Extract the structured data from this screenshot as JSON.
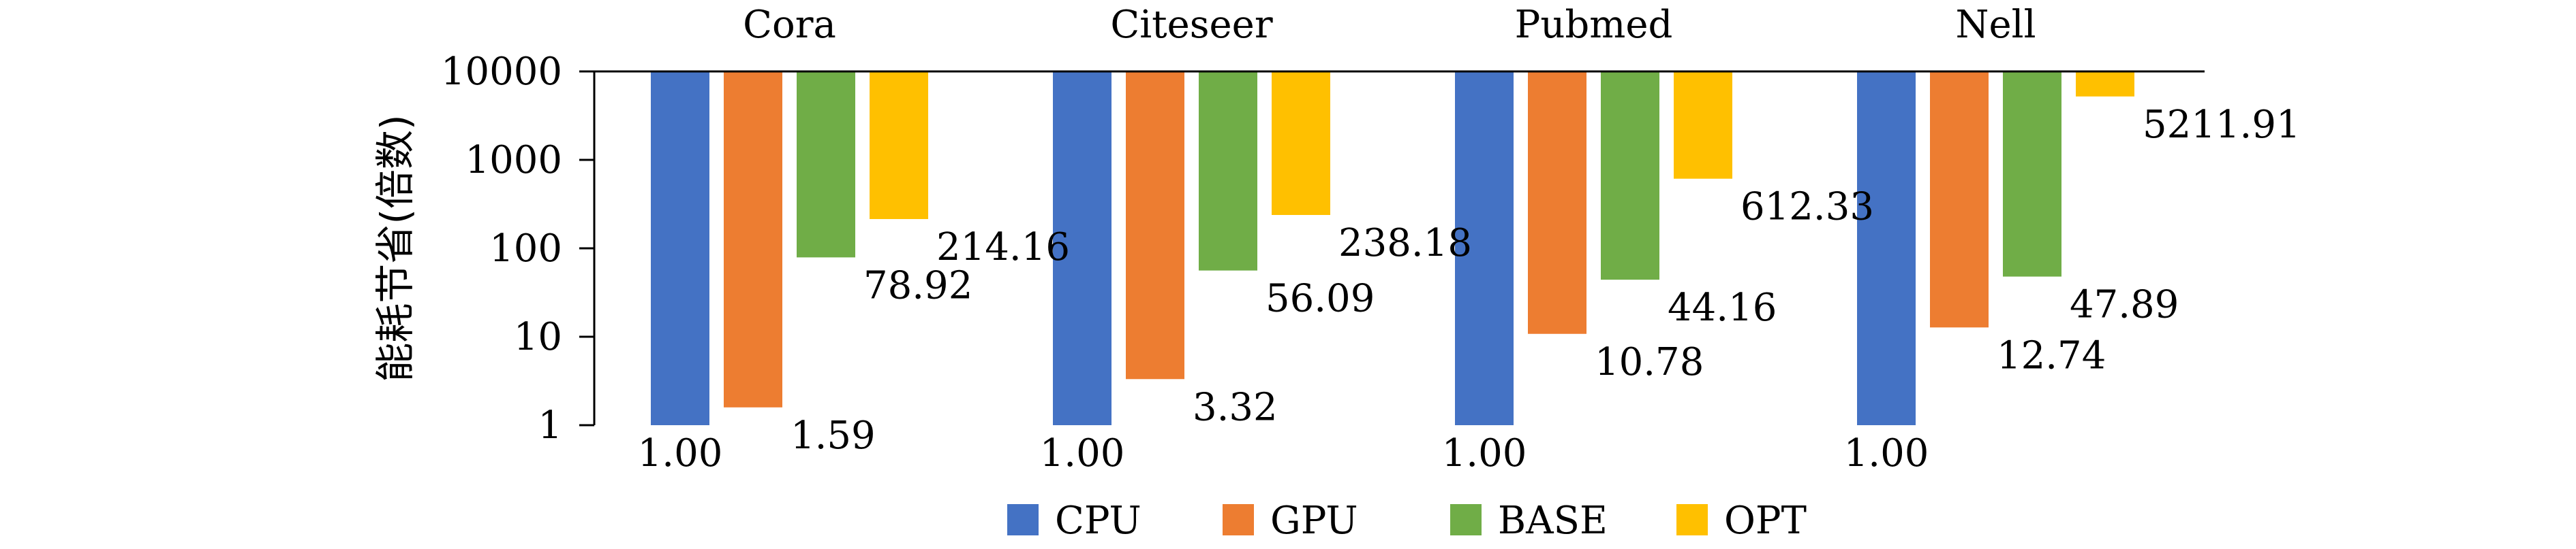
{
  "chart_data": {
    "type": "bar",
    "scale": "log",
    "ylim": [
      1,
      10000
    ],
    "ylabel": "能耗节省(倍数)",
    "xlabel": "",
    "title": "",
    "axis_position": "top",
    "grid": false,
    "legend_position": "bottom-center",
    "yticks": [
      "1",
      "10",
      "100",
      "1000",
      "10000"
    ],
    "categories": [
      "Cora",
      "Citeseer",
      "Pubmed",
      "Nell"
    ],
    "series": [
      {
        "name": "CPU",
        "color": "#4472C4",
        "values": [
          1.0,
          1.0,
          1.0,
          1.0
        ],
        "labels": [
          "1.00",
          "1.00",
          "1.00",
          "1.00"
        ]
      },
      {
        "name": "GPU",
        "color": "#ED7D31",
        "values": [
          1.59,
          3.32,
          10.78,
          12.74
        ],
        "labels": [
          "1.59",
          "3.32",
          "10.78",
          "12.74"
        ]
      },
      {
        "name": "BASE",
        "color": "#70AD47",
        "values": [
          78.92,
          56.09,
          44.16,
          47.89
        ],
        "labels": [
          "78.92",
          "56.09",
          "44.16",
          "47.89"
        ]
      },
      {
        "name": "OPT",
        "color": "#FFC000",
        "values": [
          214.16,
          238.18,
          612.33,
          5211.91
        ],
        "labels": [
          "214.16",
          "238.18",
          "612.33",
          "5211.91"
        ]
      }
    ]
  }
}
